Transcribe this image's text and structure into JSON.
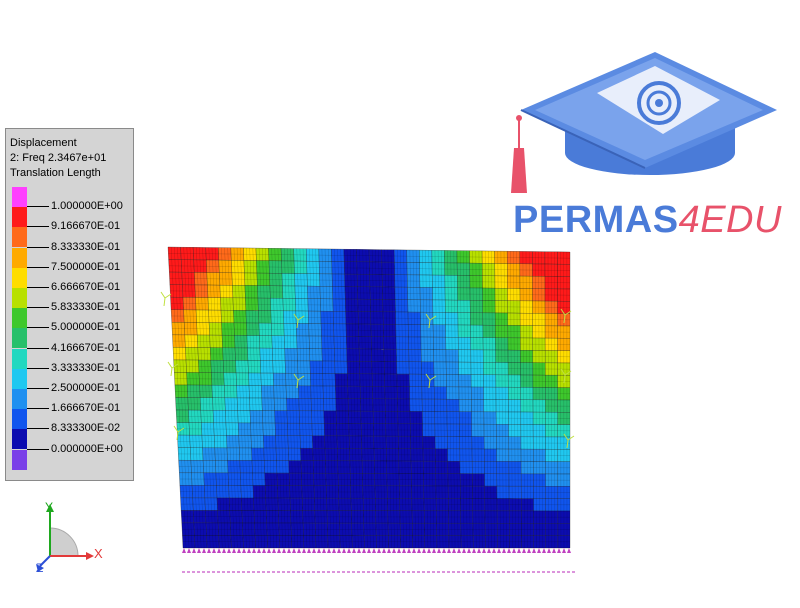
{
  "legend": {
    "title": "Displacement",
    "subtitle": "2: Freq 2.3467e+01",
    "quantity": "Translation Length",
    "values": [
      "1.000000E+00",
      "9.166670E-01",
      "8.333330E-01",
      "7.500000E-01",
      "6.666670E-01",
      "5.833330E-01",
      "5.000000E-01",
      "4.166670E-01",
      "3.333330E-01",
      "2.500000E-01",
      "1.666670E-01",
      "8.333300E-02",
      "0.000000E+00"
    ],
    "colors": [
      "#ff40ff",
      "#ff1a1a",
      "#ff6a1a",
      "#ffaa00",
      "#ffdd00",
      "#b8e000",
      "#3ec82c",
      "#27c06a",
      "#22d8c0",
      "#20c8f0",
      "#2090f0",
      "#1055ee",
      "#0c0cb0",
      "#7a40e8"
    ]
  },
  "axes": {
    "x_label": "X",
    "y_label": "Y",
    "z_label": "Z"
  },
  "logo": {
    "brand_main": "PERMAS",
    "brand_accent": "4EDU"
  }
}
